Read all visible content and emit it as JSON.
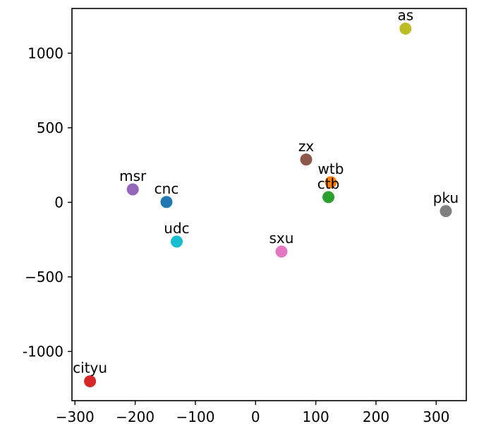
{
  "chart_data": {
    "type": "scatter",
    "title": "",
    "xlabel": "",
    "ylabel": "",
    "xlim": [
      -305,
      350
    ],
    "ylim": [
      -1330,
      1300
    ],
    "grid": false,
    "legend": "none",
    "x_ticks": [
      {
        "value": -300,
        "label": "−300"
      },
      {
        "value": -200,
        "label": "−200"
      },
      {
        "value": -100,
        "label": "−100"
      },
      {
        "value": 0,
        "label": "0"
      },
      {
        "value": 100,
        "label": "100"
      },
      {
        "value": 200,
        "label": "200"
      },
      {
        "value": 300,
        "label": "300"
      }
    ],
    "y_ticks": [
      {
        "value": 1000,
        "label": "1000"
      },
      {
        "value": 500,
        "label": "500"
      },
      {
        "value": 0,
        "label": "0"
      },
      {
        "value": -500,
        "label": "−500"
      },
      {
        "value": -1000,
        "label": "-1000"
      }
    ],
    "points": [
      {
        "label": "as",
        "x": 249,
        "y": 1165,
        "color": "#bcbd22"
      },
      {
        "label": "zx",
        "x": 84,
        "y": 287,
        "color": "#8c564b"
      },
      {
        "label": "wtb",
        "x": 125,
        "y": 135,
        "color": "#ff7f0e"
      },
      {
        "label": "ctb",
        "x": 121,
        "y": 35,
        "color": "#2ca02c"
      },
      {
        "label": "msr",
        "x": -204,
        "y": 87,
        "color": "#9467bd"
      },
      {
        "label": "cnc",
        "x": -148,
        "y": 2,
        "color": "#1f77b4"
      },
      {
        "label": "pku",
        "x": 316,
        "y": -59,
        "color": "#7f7f7f"
      },
      {
        "label": "udc",
        "x": -131,
        "y": -263,
        "color": "#17becf"
      },
      {
        "label": "sxu",
        "x": 43,
        "y": -330,
        "color": "#e377c2"
      },
      {
        "label": "cityu",
        "x": -275,
        "y": -1200,
        "color": "#d62728"
      }
    ]
  }
}
